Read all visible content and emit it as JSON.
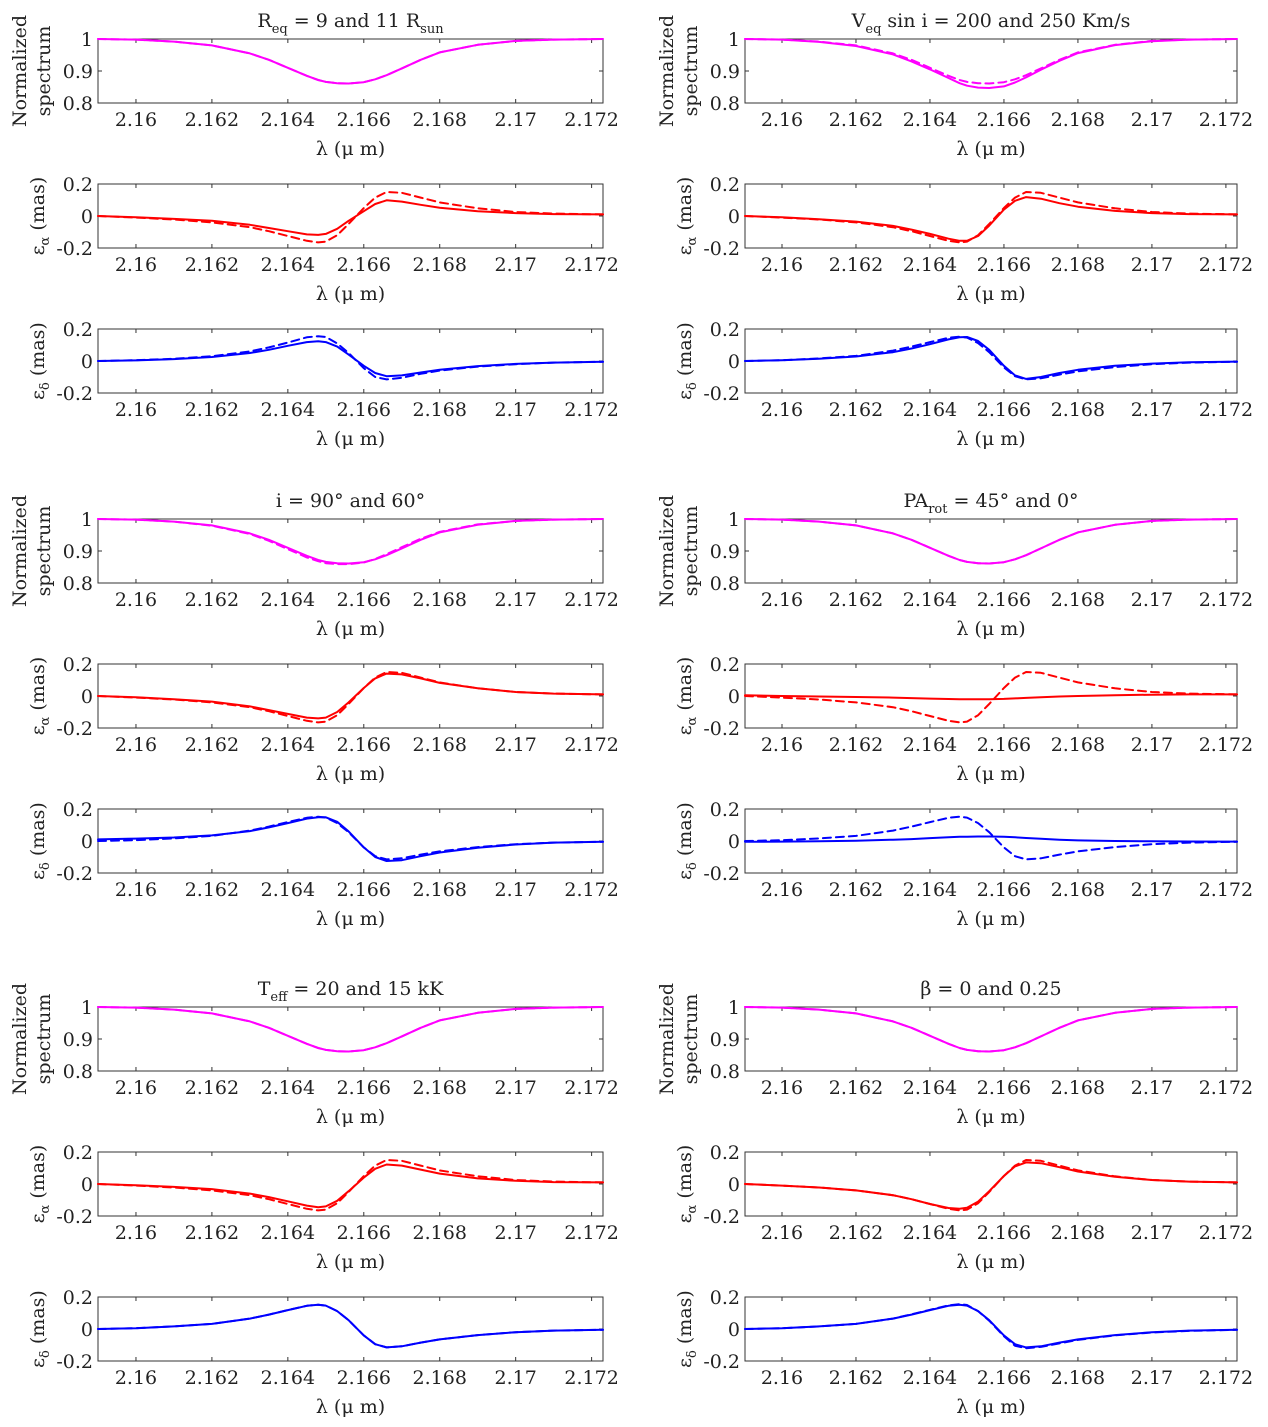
{
  "colors": {
    "spectrum": "#ff00ff",
    "ealpha": "#ff0000",
    "edelta": "#0000ff"
  },
  "line_styles": {
    "model_1": "solid",
    "model_2": "dashed"
  },
  "groups": [
    {
      "title_parts": [
        {
          "text": "R"
        },
        {
          "text": "eq",
          "sub": true
        },
        {
          "text": " = 9 and 11 R"
        },
        {
          "text": "sun",
          "sub": true
        }
      ]
    },
    {
      "title_parts": [
        {
          "text": "V"
        },
        {
          "text": "eq",
          "sub": true
        },
        {
          "text": " sin i = 200 and 250 Km/s"
        }
      ]
    },
    {
      "title_parts": [
        {
          "text": "i = 90° and 60°"
        }
      ]
    },
    {
      "title_parts": [
        {
          "text": "PA"
        },
        {
          "text": "rot",
          "sub": true
        },
        {
          "text": " = 45° and 0°"
        }
      ]
    },
    {
      "title_parts": [
        {
          "text": "T"
        },
        {
          "text": "eff",
          "sub": true
        },
        {
          "text": " = 20 and 15 kK"
        }
      ]
    },
    {
      "title_parts": [
        {
          "text": "β = 0 and 0.25"
        }
      ]
    }
  ],
  "chart_data": {
    "type": "line",
    "x_axis": {
      "label": "λ (μ m)",
      "range": [
        2.159,
        2.1723
      ],
      "ticks": [
        2.16,
        2.162,
        2.164,
        2.166,
        2.168,
        2.17,
        2.172
      ],
      "tick_labels": [
        "2.16",
        "2.162",
        "2.164",
        "2.166",
        "2.168",
        "2.17",
        "2.172"
      ]
    },
    "spectrum_axis": {
      "label_lines": [
        "Normalized",
        "spectrum"
      ],
      "range": [
        0.8,
        1.0
      ],
      "ticks": [
        0.8,
        0.9,
        1.0
      ],
      "tick_labels": [
        "0.8",
        "0.9",
        "1"
      ]
    },
    "alpha_axis": {
      "label": "ε",
      "label_sub": "α",
      "label_unit": " (mas)",
      "range": [
        -0.2,
        0.2
      ],
      "ticks": [
        -0.2,
        0,
        0.2
      ],
      "tick_labels": [
        "-0.2",
        "0",
        "0.2"
      ]
    },
    "delta_axis": {
      "label": "ε",
      "label_sub": "δ",
      "label_unit": " (mas)",
      "range": [
        -0.2,
        0.2
      ],
      "ticks": [
        -0.2,
        0,
        0.2
      ],
      "tick_labels": [
        "-0.2",
        "0",
        "0.2"
      ]
    },
    "x": [
      2.159,
      2.16,
      2.161,
      2.162,
      2.163,
      2.1635,
      2.164,
      2.1645,
      2.1648,
      2.165,
      2.1653,
      2.1656,
      2.166,
      2.1663,
      2.1666,
      2.167,
      2.1675,
      2.168,
      2.169,
      2.17,
      2.171,
      2.1723
    ],
    "groups": [
      {
        "spectrum": [
          [
            1.0,
            0.998,
            0.992,
            0.98,
            0.955,
            0.935,
            0.91,
            0.885,
            0.872,
            0.866,
            0.862,
            0.861,
            0.865,
            0.874,
            0.887,
            0.908,
            0.935,
            0.958,
            0.982,
            0.994,
            0.998,
            1.0
          ],
          [
            1.0,
            0.998,
            0.992,
            0.98,
            0.955,
            0.935,
            0.91,
            0.885,
            0.872,
            0.866,
            0.862,
            0.861,
            0.865,
            0.874,
            0.887,
            0.908,
            0.935,
            0.958,
            0.982,
            0.994,
            0.998,
            1.0
          ]
        ],
        "alpha": [
          [
            0.0,
            -0.008,
            -0.018,
            -0.03,
            -0.055,
            -0.075,
            -0.095,
            -0.115,
            -0.118,
            -0.112,
            -0.08,
            -0.03,
            0.03,
            0.075,
            0.098,
            0.09,
            0.07,
            0.052,
            0.03,
            0.018,
            0.012,
            0.01
          ],
          [
            0.0,
            -0.01,
            -0.022,
            -0.04,
            -0.07,
            -0.095,
            -0.125,
            -0.155,
            -0.165,
            -0.16,
            -0.12,
            -0.05,
            0.05,
            0.115,
            0.15,
            0.145,
            0.115,
            0.085,
            0.048,
            0.025,
            0.015,
            0.01
          ]
        ],
        "delta": [
          [
            0.0,
            0.004,
            0.012,
            0.025,
            0.05,
            0.07,
            0.095,
            0.118,
            0.124,
            0.118,
            0.09,
            0.04,
            -0.03,
            -0.075,
            -0.095,
            -0.09,
            -0.072,
            -0.055,
            -0.032,
            -0.018,
            -0.01,
            -0.005
          ],
          [
            0.0,
            0.005,
            0.014,
            0.03,
            0.06,
            0.085,
            0.115,
            0.148,
            0.155,
            0.15,
            0.11,
            0.05,
            -0.045,
            -0.1,
            -0.115,
            -0.105,
            -0.08,
            -0.06,
            -0.035,
            -0.02,
            -0.01,
            -0.005
          ]
        ]
      },
      {
        "spectrum": [
          [
            1.0,
            0.998,
            0.991,
            0.978,
            0.952,
            0.93,
            0.905,
            0.878,
            0.862,
            0.854,
            0.848,
            0.847,
            0.852,
            0.864,
            0.88,
            0.904,
            0.932,
            0.956,
            0.981,
            0.993,
            0.998,
            1.0
          ],
          [
            1.0,
            0.998,
            0.992,
            0.98,
            0.955,
            0.935,
            0.91,
            0.885,
            0.872,
            0.866,
            0.862,
            0.861,
            0.865,
            0.874,
            0.887,
            0.908,
            0.935,
            0.958,
            0.982,
            0.994,
            0.998,
            1.0
          ]
        ],
        "alpha": [
          [
            0.0,
            -0.008,
            -0.02,
            -0.035,
            -0.062,
            -0.085,
            -0.112,
            -0.142,
            -0.155,
            -0.155,
            -0.125,
            -0.06,
            0.04,
            0.095,
            0.118,
            0.108,
            0.08,
            0.058,
            0.032,
            0.018,
            0.012,
            0.01
          ],
          [
            0.0,
            -0.01,
            -0.022,
            -0.04,
            -0.07,
            -0.095,
            -0.125,
            -0.155,
            -0.165,
            -0.16,
            -0.12,
            -0.05,
            0.05,
            0.115,
            0.15,
            0.145,
            0.115,
            0.085,
            0.048,
            0.025,
            0.015,
            0.01
          ]
        ],
        "delta": [
          [
            0.0,
            0.005,
            0.014,
            0.028,
            0.055,
            0.078,
            0.105,
            0.135,
            0.148,
            0.15,
            0.125,
            0.07,
            -0.03,
            -0.09,
            -0.112,
            -0.1,
            -0.075,
            -0.055,
            -0.03,
            -0.016,
            -0.008,
            -0.004
          ],
          [
            0.0,
            0.005,
            0.016,
            0.032,
            0.065,
            0.09,
            0.118,
            0.145,
            0.152,
            0.146,
            0.112,
            0.055,
            -0.04,
            -0.095,
            -0.115,
            -0.108,
            -0.085,
            -0.065,
            -0.038,
            -0.02,
            -0.01,
            -0.005
          ]
        ]
      },
      {
        "spectrum": [
          [
            1.0,
            0.998,
            0.992,
            0.98,
            0.955,
            0.935,
            0.91,
            0.885,
            0.872,
            0.866,
            0.862,
            0.861,
            0.865,
            0.874,
            0.887,
            0.908,
            0.935,
            0.958,
            0.982,
            0.994,
            0.998,
            1.0
          ],
          [
            1.0,
            0.998,
            0.992,
            0.979,
            0.953,
            0.932,
            0.906,
            0.88,
            0.868,
            0.862,
            0.859,
            0.859,
            0.864,
            0.875,
            0.89,
            0.912,
            0.938,
            0.96,
            0.983,
            0.994,
            0.998,
            1.0
          ]
        ],
        "alpha": [
          [
            0.0,
            -0.008,
            -0.02,
            -0.035,
            -0.065,
            -0.088,
            -0.112,
            -0.135,
            -0.14,
            -0.135,
            -0.1,
            -0.04,
            0.05,
            0.11,
            0.14,
            0.135,
            0.11,
            0.082,
            0.048,
            0.025,
            0.015,
            0.01
          ],
          [
            0.0,
            -0.01,
            -0.022,
            -0.04,
            -0.07,
            -0.095,
            -0.125,
            -0.155,
            -0.165,
            -0.16,
            -0.12,
            -0.05,
            0.05,
            0.115,
            0.15,
            0.145,
            0.115,
            0.085,
            0.048,
            0.025,
            0.015,
            0.01
          ]
        ],
        "delta": [
          [
            0.01,
            0.015,
            0.022,
            0.035,
            0.062,
            0.085,
            0.112,
            0.14,
            0.148,
            0.148,
            0.12,
            0.06,
            -0.04,
            -0.1,
            -0.125,
            -0.12,
            -0.095,
            -0.072,
            -0.042,
            -0.022,
            -0.01,
            -0.005
          ],
          [
            0.0,
            0.005,
            0.016,
            0.032,
            0.065,
            0.09,
            0.118,
            0.145,
            0.152,
            0.146,
            0.112,
            0.055,
            -0.04,
            -0.095,
            -0.115,
            -0.108,
            -0.085,
            -0.065,
            -0.038,
            -0.02,
            -0.01,
            -0.005
          ]
        ]
      },
      {
        "spectrum": [
          [
            1.0,
            0.998,
            0.992,
            0.98,
            0.955,
            0.935,
            0.91,
            0.885,
            0.872,
            0.866,
            0.862,
            0.861,
            0.865,
            0.874,
            0.887,
            0.908,
            0.935,
            0.958,
            0.982,
            0.994,
            0.998,
            1.0
          ],
          [
            1.0,
            0.998,
            0.992,
            0.98,
            0.955,
            0.935,
            0.91,
            0.885,
            0.872,
            0.866,
            0.862,
            0.861,
            0.865,
            0.874,
            0.887,
            0.908,
            0.935,
            0.958,
            0.982,
            0.994,
            0.998,
            1.0
          ]
        ],
        "alpha": [
          [
            0.005,
            0.0,
            -0.003,
            -0.006,
            -0.01,
            -0.013,
            -0.016,
            -0.019,
            -0.02,
            -0.02,
            -0.02,
            -0.02,
            -0.018,
            -0.015,
            -0.012,
            -0.008,
            -0.003,
            0.0,
            0.005,
            0.008,
            0.01,
            0.01
          ],
          [
            0.0,
            -0.01,
            -0.022,
            -0.04,
            -0.07,
            -0.095,
            -0.125,
            -0.155,
            -0.165,
            -0.16,
            -0.12,
            -0.05,
            0.05,
            0.115,
            0.15,
            0.145,
            0.115,
            0.085,
            0.048,
            0.025,
            0.015,
            0.01
          ]
        ],
        "delta": [
          [
            -0.005,
            -0.004,
            -0.002,
            0.002,
            0.008,
            0.012,
            0.018,
            0.023,
            0.026,
            0.027,
            0.028,
            0.028,
            0.026,
            0.023,
            0.019,
            0.014,
            0.008,
            0.004,
            0.0,
            -0.002,
            -0.003,
            -0.004
          ],
          [
            0.0,
            0.005,
            0.016,
            0.032,
            0.065,
            0.09,
            0.118,
            0.145,
            0.152,
            0.146,
            0.112,
            0.055,
            -0.04,
            -0.095,
            -0.115,
            -0.108,
            -0.085,
            -0.065,
            -0.038,
            -0.02,
            -0.01,
            -0.005
          ]
        ]
      },
      {
        "spectrum": [
          [
            1.0,
            0.998,
            0.992,
            0.98,
            0.955,
            0.935,
            0.91,
            0.885,
            0.872,
            0.866,
            0.862,
            0.861,
            0.865,
            0.874,
            0.887,
            0.908,
            0.935,
            0.958,
            0.982,
            0.994,
            0.998,
            1.0
          ],
          [
            1.0,
            0.998,
            0.992,
            0.98,
            0.955,
            0.935,
            0.91,
            0.885,
            0.872,
            0.866,
            0.862,
            0.861,
            0.865,
            0.874,
            0.887,
            0.908,
            0.935,
            0.958,
            0.982,
            0.994,
            0.998,
            1.0
          ]
        ],
        "alpha": [
          [
            0.0,
            -0.008,
            -0.018,
            -0.032,
            -0.06,
            -0.082,
            -0.108,
            -0.135,
            -0.145,
            -0.14,
            -0.105,
            -0.045,
            0.04,
            0.095,
            0.122,
            0.115,
            0.09,
            0.065,
            0.035,
            0.02,
            0.012,
            0.01
          ],
          [
            0.0,
            -0.01,
            -0.022,
            -0.04,
            -0.07,
            -0.095,
            -0.125,
            -0.155,
            -0.165,
            -0.16,
            -0.12,
            -0.05,
            0.05,
            0.115,
            0.15,
            0.145,
            0.115,
            0.085,
            0.048,
            0.025,
            0.015,
            0.01
          ]
        ],
        "delta": [
          [
            0.0,
            0.005,
            0.016,
            0.032,
            0.065,
            0.09,
            0.118,
            0.145,
            0.152,
            0.146,
            0.112,
            0.055,
            -0.04,
            -0.095,
            -0.115,
            -0.108,
            -0.085,
            -0.065,
            -0.038,
            -0.02,
            -0.01,
            -0.005
          ],
          [
            0.0,
            0.005,
            0.016,
            0.032,
            0.065,
            0.09,
            0.118,
            0.145,
            0.152,
            0.146,
            0.112,
            0.055,
            -0.04,
            -0.095,
            -0.115,
            -0.108,
            -0.085,
            -0.065,
            -0.038,
            -0.02,
            -0.01,
            -0.005
          ]
        ]
      },
      {
        "spectrum": [
          [
            1.0,
            0.998,
            0.992,
            0.98,
            0.955,
            0.935,
            0.91,
            0.885,
            0.872,
            0.866,
            0.862,
            0.861,
            0.865,
            0.874,
            0.887,
            0.908,
            0.935,
            0.958,
            0.982,
            0.994,
            0.998,
            1.0
          ],
          [
            1.0,
            0.998,
            0.992,
            0.98,
            0.955,
            0.935,
            0.91,
            0.885,
            0.872,
            0.866,
            0.862,
            0.861,
            0.865,
            0.874,
            0.887,
            0.908,
            0.935,
            0.958,
            0.982,
            0.994,
            0.998,
            1.0
          ]
        ],
        "alpha": [
          [
            0.0,
            -0.01,
            -0.022,
            -0.04,
            -0.07,
            -0.095,
            -0.125,
            -0.15,
            -0.155,
            -0.148,
            -0.11,
            -0.045,
            0.05,
            0.11,
            0.135,
            0.13,
            0.105,
            0.078,
            0.045,
            0.025,
            0.015,
            0.01
          ],
          [
            0.0,
            -0.01,
            -0.022,
            -0.04,
            -0.07,
            -0.095,
            -0.125,
            -0.155,
            -0.165,
            -0.16,
            -0.12,
            -0.05,
            0.05,
            0.115,
            0.15,
            0.145,
            0.115,
            0.085,
            0.048,
            0.025,
            0.015,
            0.01
          ]
        ],
        "delta": [
          [
            0.0,
            0.005,
            0.016,
            0.032,
            0.065,
            0.09,
            0.118,
            0.145,
            0.152,
            0.146,
            0.112,
            0.055,
            -0.04,
            -0.095,
            -0.115,
            -0.108,
            -0.085,
            -0.065,
            -0.038,
            -0.02,
            -0.01,
            -0.005
          ],
          [
            0.0,
            0.005,
            0.016,
            0.032,
            0.065,
            0.092,
            0.12,
            0.148,
            0.155,
            0.15,
            0.112,
            0.052,
            -0.045,
            -0.105,
            -0.12,
            -0.112,
            -0.09,
            -0.068,
            -0.04,
            -0.022,
            -0.012,
            -0.005
          ]
        ]
      }
    ]
  }
}
